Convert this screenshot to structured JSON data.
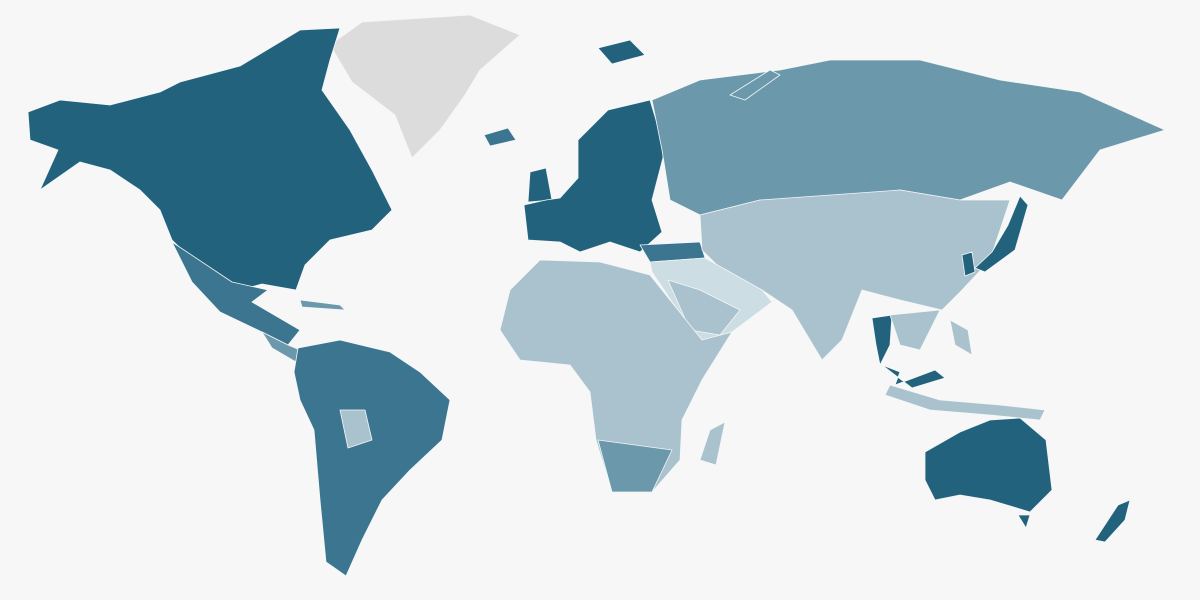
{
  "map": {
    "type": "choropleth-world",
    "background": "#f7f7f7",
    "palette": {
      "level_5": "#23627d",
      "level_4": "#3b7590",
      "level_3": "#6b98ab",
      "level_2": "#a9c2cd",
      "level_1": "#cddde4",
      "no_data": "#dcdcdc"
    }
  }
}
